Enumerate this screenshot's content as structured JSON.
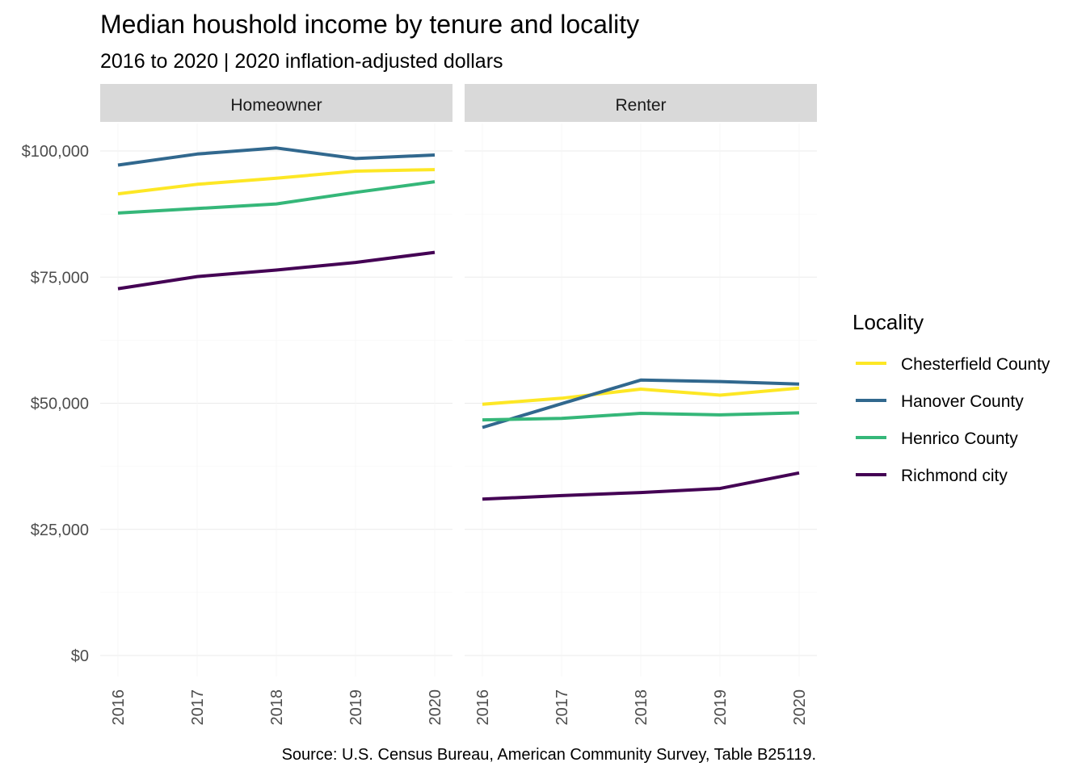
{
  "chart_data": {
    "type": "line",
    "title": "Median houshold income by tenure and locality",
    "subtitle": "2016 to 2020 | 2020 inflation-adjusted dollars",
    "caption": "Source: U.S. Census Bureau, American Community Survey, Table B25119.",
    "x": [
      "2016",
      "2017",
      "2018",
      "2019",
      "2020"
    ],
    "ylim": [
      0,
      100000
    ],
    "y_ticks": [
      {
        "value": 0,
        "label": "$0"
      },
      {
        "value": 25000,
        "label": "$25,000"
      },
      {
        "value": 50000,
        "label": "$50,000"
      },
      {
        "value": 75000,
        "label": "$75,000"
      },
      {
        "value": 100000,
        "label": "$100,000"
      }
    ],
    "grid": true,
    "legend": {
      "title": "Locality",
      "placement": "right"
    },
    "facets": [
      {
        "label": "Homeowner",
        "series": [
          {
            "name": "Chesterfield County",
            "color": "#fde725",
            "values": [
              91500,
              93400,
              94600,
              96000,
              96300
            ]
          },
          {
            "name": "Hanover County",
            "color": "#31688e",
            "values": [
              97200,
              99400,
              100600,
              98500,
              99200
            ]
          },
          {
            "name": "Henrico County",
            "color": "#35b779",
            "values": [
              87700,
              88600,
              89500,
              91800,
              93900
            ]
          },
          {
            "name": "Richmond city",
            "color": "#440154",
            "values": [
              72700,
              75100,
              76400,
              77900,
              79900
            ]
          }
        ]
      },
      {
        "label": "Renter",
        "series": [
          {
            "name": "Chesterfield County",
            "color": "#fde725",
            "values": [
              49800,
              51000,
              52800,
              51600,
              53000
            ]
          },
          {
            "name": "Hanover County",
            "color": "#31688e",
            "values": [
              45200,
              49900,
              54600,
              54300,
              53800
            ]
          },
          {
            "name": "Henrico County",
            "color": "#35b779",
            "values": [
              46700,
              47000,
              48000,
              47700,
              48100
            ]
          },
          {
            "name": "Richmond city",
            "color": "#440154",
            "values": [
              31000,
              31700,
              32300,
              33100,
              36200
            ]
          }
        ]
      }
    ]
  }
}
